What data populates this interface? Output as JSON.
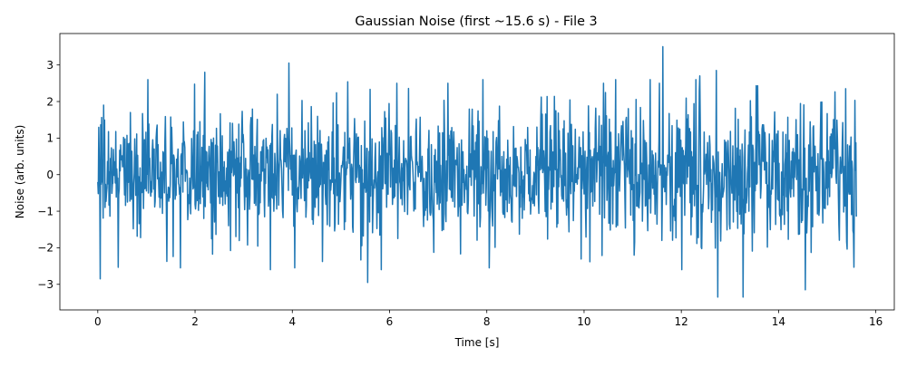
{
  "chart_data": {
    "type": "line",
    "title": "Gaussian Noise (first ~15.6 s) - File 3",
    "xlabel": "Time [s]",
    "ylabel": "Noise (arb. units)",
    "xlim": [
      -0.78,
      16.38
    ],
    "ylim": [
      -3.7,
      3.86
    ],
    "xticks": [
      0,
      2,
      4,
      6,
      8,
      10,
      12,
      14,
      16
    ],
    "yticks": [
      -3,
      -2,
      -1,
      0,
      1,
      2,
      3
    ],
    "grid": false,
    "legend": "none",
    "line_color": "#1f77b4",
    "series": [
      {
        "name": "",
        "sampling": "approximately 100 samples per second, 0 to 15.6 s; zero-mean Gaussian noise, standard deviation about 1",
        "x_start": 0,
        "x_step": 0.01,
        "n_points": 1561,
        "peaks": [
          {
            "x": 0.05,
            "y": -2.85
          },
          {
            "x": 1.7,
            "y": -2.55
          },
          {
            "x": 2.2,
            "y": 2.8
          },
          {
            "x": 3.93,
            "y": 3.05
          },
          {
            "x": 4.05,
            "y": -2.55
          },
          {
            "x": 5.55,
            "y": -2.95
          },
          {
            "x": 6.15,
            "y": 2.5
          },
          {
            "x": 7.2,
            "y": 2.5
          },
          {
            "x": 8.05,
            "y": -2.55
          },
          {
            "x": 10.4,
            "y": 2.5
          },
          {
            "x": 11.55,
            "y": 2.5
          },
          {
            "x": 11.62,
            "y": 3.5
          },
          {
            "x": 12.38,
            "y": 2.7
          },
          {
            "x": 12.72,
            "y": 2.85
          },
          {
            "x": 12.75,
            "y": -3.35
          },
          {
            "x": 13.27,
            "y": -3.35
          },
          {
            "x": 14.55,
            "y": -3.15
          },
          {
            "x": 15.38,
            "y": 2.35
          }
        ]
      }
    ]
  }
}
